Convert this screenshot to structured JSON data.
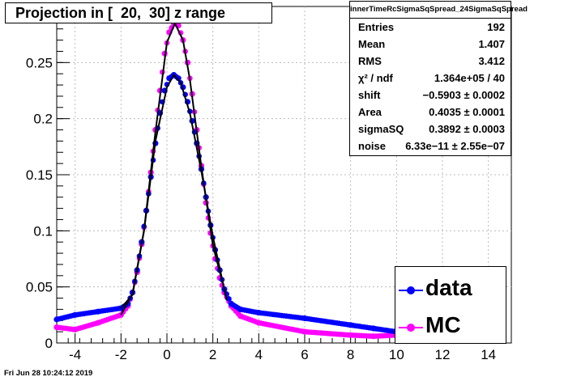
{
  "title": "Projection in [  20,  30] z range",
  "footer": "Fri Jun 28 10:24:12 2019",
  "stats": {
    "name": "innerTimeRcSigmaSqSpread_24SigmaSqSpread",
    "rows": [
      {
        "label": "Entries",
        "value": "192"
      },
      {
        "label": "Mean",
        "value": "1.407"
      },
      {
        "label": "RMS",
        "value": "3.412"
      },
      {
        "label": "χ² / ndf",
        "value": "1.364e+05 / 40"
      },
      {
        "label": "shift",
        "value": "−0.5903 ± 0.0002"
      },
      {
        "label": "Area",
        "value": "0.4035 ± 0.0001"
      },
      {
        "label": "sigmaSQ",
        "value": "0.3892 ± 0.0003"
      },
      {
        "label": "noise",
        "value": "6.33e−11 ± 2.55e−07"
      }
    ]
  },
  "legend": [
    {
      "label": "data",
      "color": "#0000ff"
    },
    {
      "label": "MC",
      "color": "#ff00ff"
    }
  ],
  "chart_data": {
    "type": "scatter",
    "title": "Projection in [  20,  30] z range",
    "xlim": [
      -4.8,
      15.0
    ],
    "ylim": [
      0,
      0.3
    ],
    "x_ticks": [
      -4,
      -2,
      0,
      2,
      4,
      6,
      8,
      10,
      12,
      14
    ],
    "y_ticks": [
      0,
      0.05,
      0.1,
      0.15,
      0.2,
      0.25
    ],
    "grid": true,
    "legend_position": "bottom-right",
    "series": [
      {
        "name": "data",
        "color": "#0000ff",
        "points": [
          [
            -4.8,
            0.021
          ],
          [
            -4.0,
            0.025
          ],
          [
            -3.0,
            0.028
          ],
          [
            -2.0,
            0.031
          ],
          [
            -1.7,
            0.035
          ],
          [
            -1.5,
            0.045
          ],
          [
            -1.3,
            0.065
          ],
          [
            -1.1,
            0.09
          ],
          [
            -0.9,
            0.118
          ],
          [
            -0.7,
            0.148
          ],
          [
            -0.5,
            0.178
          ],
          [
            -0.3,
            0.205
          ],
          [
            -0.1,
            0.225
          ],
          [
            0.1,
            0.236
          ],
          [
            0.3,
            0.239
          ],
          [
            0.5,
            0.236
          ],
          [
            0.7,
            0.228
          ],
          [
            0.9,
            0.215
          ],
          [
            1.1,
            0.198
          ],
          [
            1.3,
            0.178
          ],
          [
            1.5,
            0.155
          ],
          [
            1.7,
            0.13
          ],
          [
            1.9,
            0.105
          ],
          [
            2.1,
            0.083
          ],
          [
            2.3,
            0.065
          ],
          [
            2.5,
            0.048
          ],
          [
            2.8,
            0.035
          ],
          [
            3.2,
            0.03
          ],
          [
            4.0,
            0.027
          ],
          [
            6.0,
            0.022
          ],
          [
            8.0,
            0.016
          ],
          [
            9.0,
            0.013
          ],
          [
            10.0,
            0.01
          ]
        ]
      },
      {
        "name": "MC",
        "color": "#ff00ff",
        "points": [
          [
            -4.8,
            0.014
          ],
          [
            -4.0,
            0.012
          ],
          [
            -3.0,
            0.018
          ],
          [
            -2.0,
            0.025
          ],
          [
            -1.7,
            0.033
          ],
          [
            -1.5,
            0.045
          ],
          [
            -1.3,
            0.063
          ],
          [
            -1.1,
            0.088
          ],
          [
            -0.9,
            0.118
          ],
          [
            -0.7,
            0.152
          ],
          [
            -0.5,
            0.19
          ],
          [
            -0.3,
            0.225
          ],
          [
            -0.1,
            0.258
          ],
          [
            0.1,
            0.277
          ],
          [
            0.3,
            0.285
          ],
          [
            0.5,
            0.283
          ],
          [
            0.7,
            0.27
          ],
          [
            0.9,
            0.25
          ],
          [
            1.1,
            0.222
          ],
          [
            1.3,
            0.19
          ],
          [
            1.5,
            0.158
          ],
          [
            1.7,
            0.125
          ],
          [
            1.9,
            0.098
          ],
          [
            2.1,
            0.075
          ],
          [
            2.3,
            0.058
          ],
          [
            2.5,
            0.045
          ],
          [
            2.8,
            0.033
          ],
          [
            3.2,
            0.024
          ],
          [
            4.0,
            0.018
          ],
          [
            6.0,
            0.01
          ],
          [
            8.0,
            0.007
          ],
          [
            9.0,
            0.006
          ],
          [
            10.0,
            0.007
          ]
        ]
      }
    ],
    "fits": [
      {
        "series": "data",
        "color": "#000000",
        "points": [
          [
            -2.0,
            0.031
          ],
          [
            -1.5,
            0.043
          ],
          [
            -1.0,
            0.1
          ],
          [
            -0.5,
            0.18
          ],
          [
            0.0,
            0.228
          ],
          [
            0.3,
            0.239
          ],
          [
            0.6,
            0.232
          ],
          [
            1.0,
            0.205
          ],
          [
            1.5,
            0.153
          ],
          [
            2.0,
            0.095
          ],
          [
            2.6,
            0.038
          ]
        ]
      },
      {
        "series": "MC",
        "color": "#000000",
        "points": [
          [
            -2.0,
            0.025
          ],
          [
            -1.5,
            0.044
          ],
          [
            -1.0,
            0.1
          ],
          [
            -0.5,
            0.188
          ],
          [
            0.0,
            0.268
          ],
          [
            0.35,
            0.285
          ],
          [
            0.7,
            0.27
          ],
          [
            1.0,
            0.235
          ],
          [
            1.5,
            0.157
          ],
          [
            2.0,
            0.087
          ],
          [
            2.6,
            0.04
          ]
        ]
      }
    ]
  }
}
